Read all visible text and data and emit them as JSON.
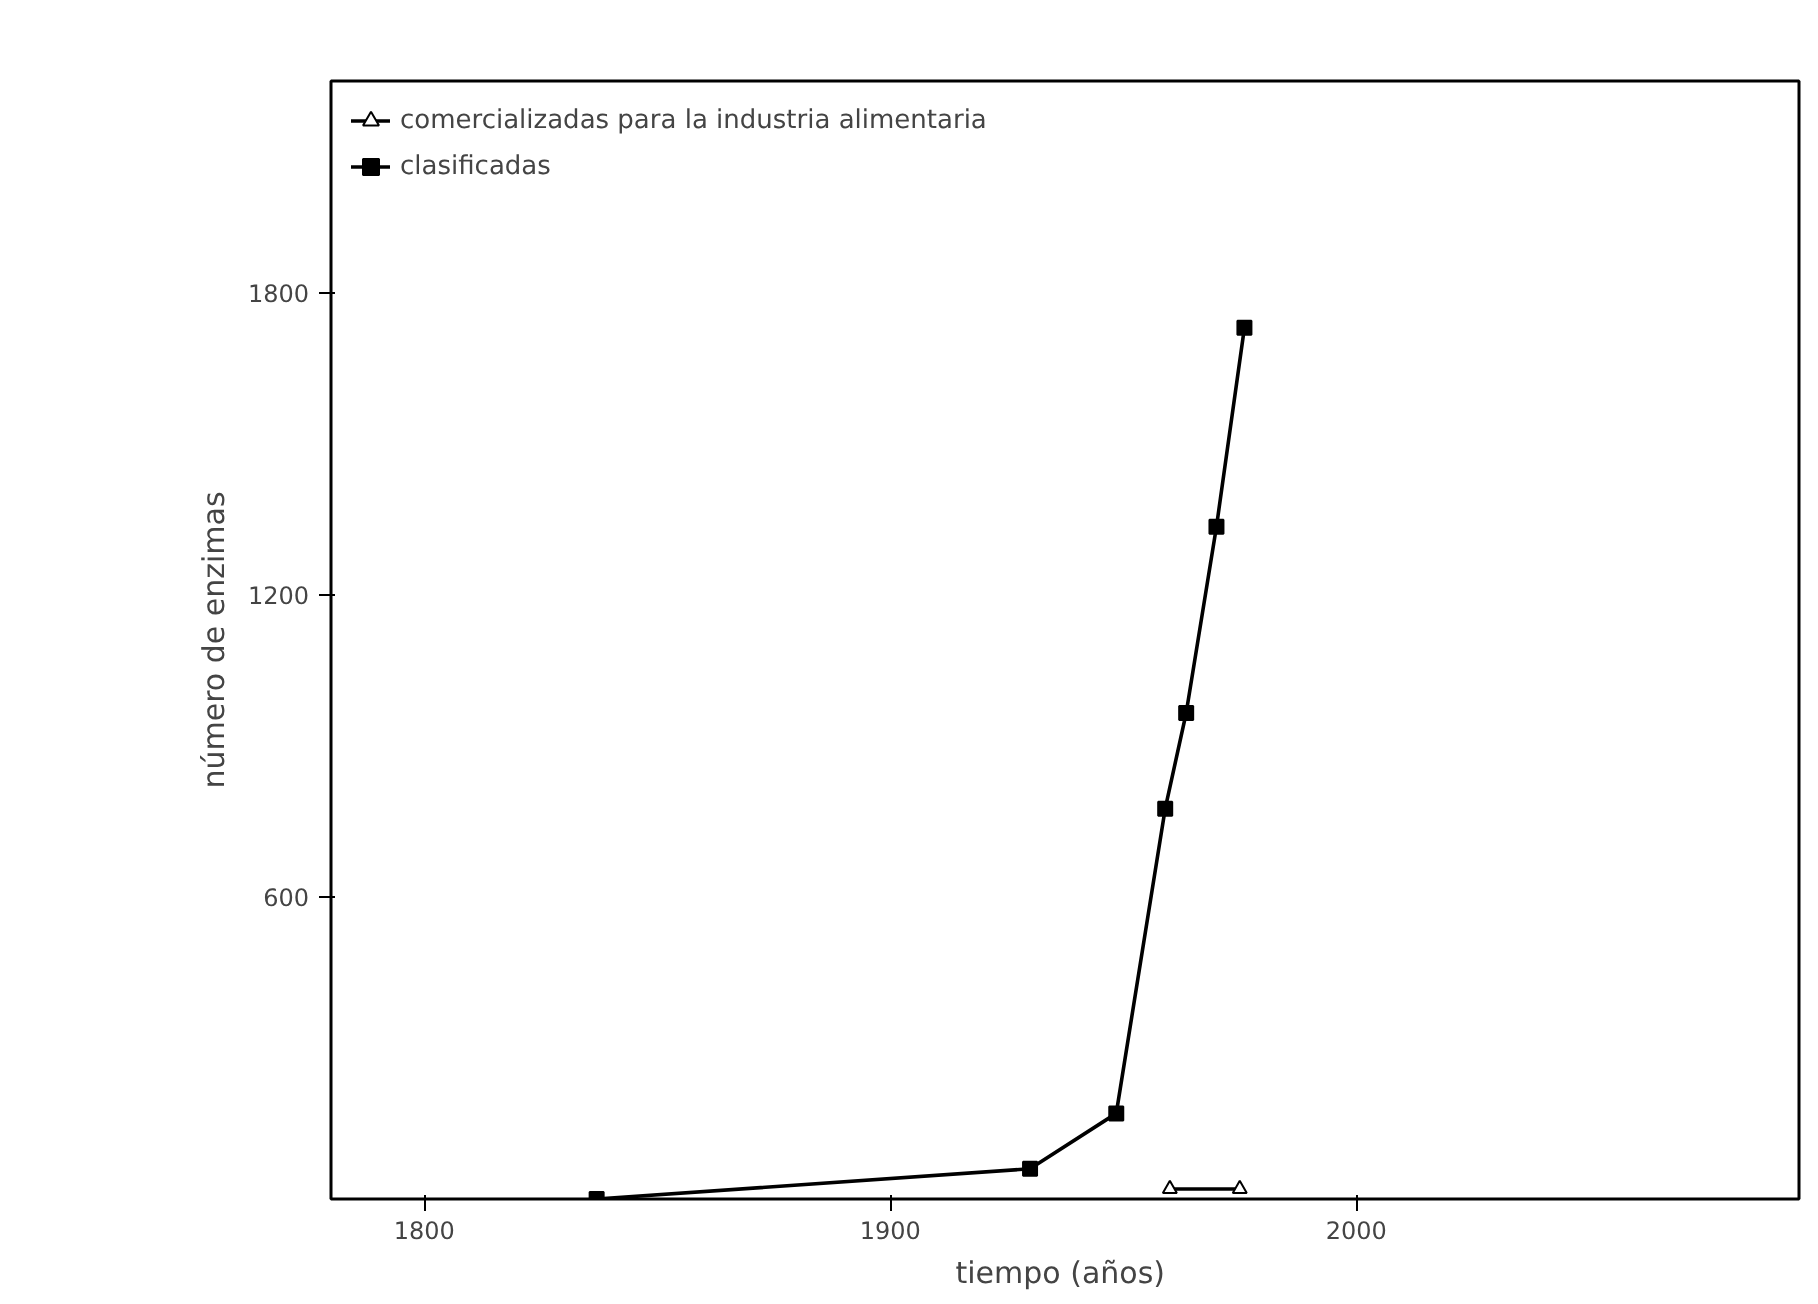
{
  "chart_data": {
    "type": "line",
    "xlabel": "tiempo  (años)",
    "ylabel": "número de enzimas",
    "xlim": [
      1780,
      2095
    ],
    "ylim": [
      0,
      2220
    ],
    "xticks": [
      1800,
      1900,
      2000
    ],
    "yticks": [
      600,
      1200,
      1800
    ],
    "grid": false,
    "legend": "top left",
    "line_style": "solid",
    "series": [
      {
        "name": "comercializadas para la industria alimentaria",
        "color": "#000000",
        "marker": "triangle",
        "x": [
          1960,
          1975
        ],
        "values": [
          20,
          20
        ]
      },
      {
        "name": "clasificadas",
        "color": "#000000",
        "marker": "square",
        "x": [
          1837,
          1930,
          1948.5,
          1959,
          1963.5,
          1970,
          1976
        ],
        "values": [
          0,
          60,
          170,
          775,
          965,
          1335,
          1730
        ]
      }
    ]
  }
}
